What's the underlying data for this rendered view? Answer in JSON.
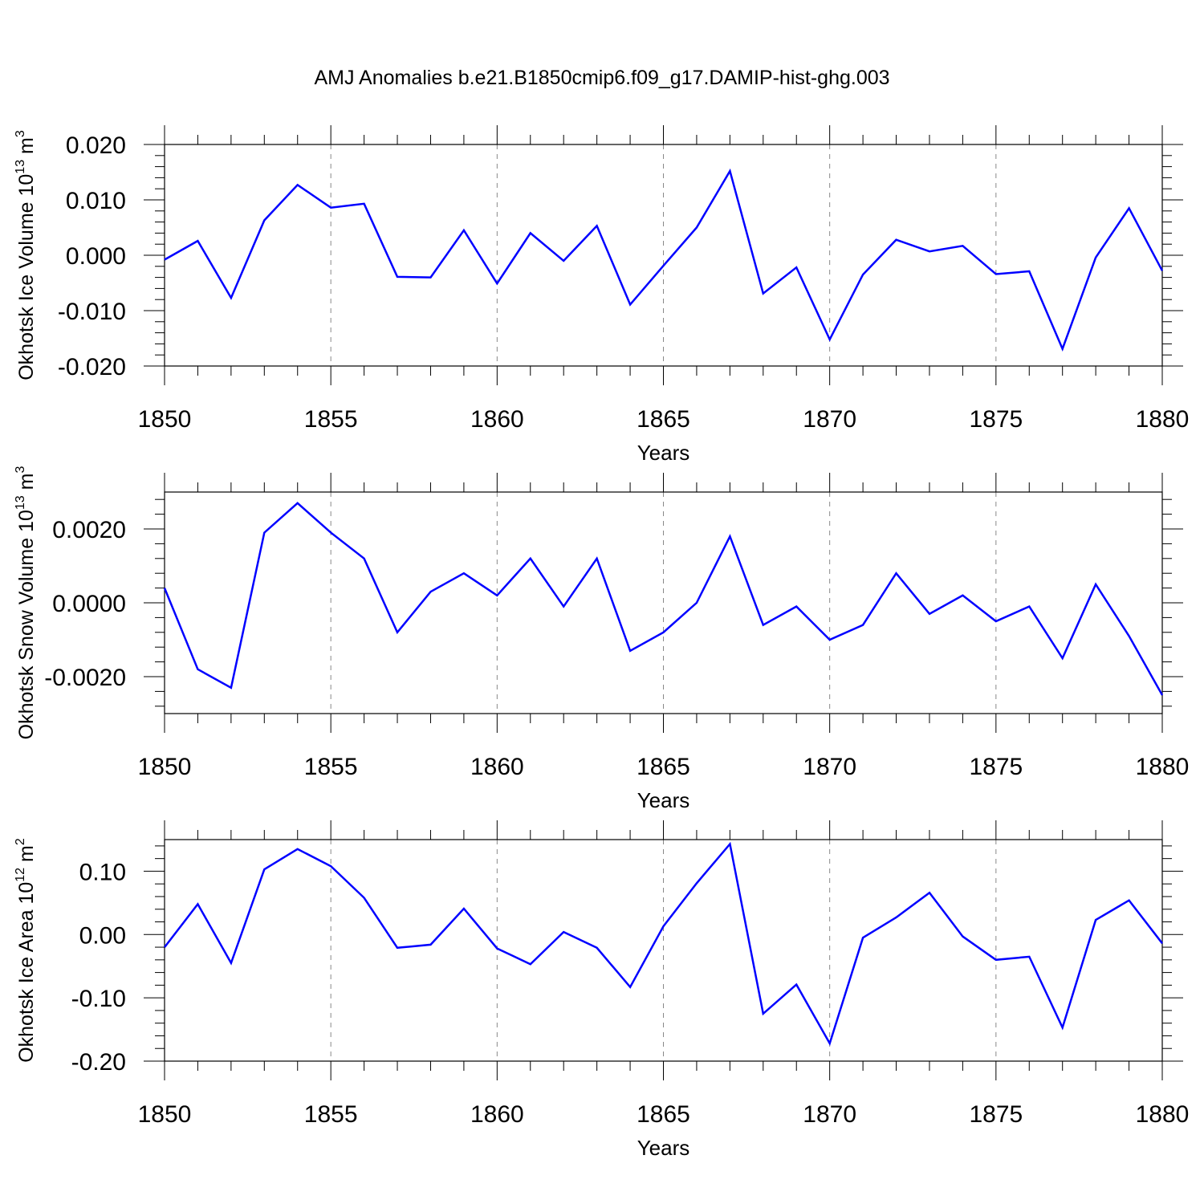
{
  "title": "AMJ Anomalies b.e21.B1850cmip6.f09_g17.DAMIP-hist-ghg.003",
  "colors": {
    "line": "#0000ff",
    "axis": "#000000",
    "grid": "#888888",
    "background": "#ffffff"
  },
  "chart_data": [
    {
      "type": "line",
      "xlabel": "Years",
      "ylabel": {
        "text": "Okhotsk Ice Volume 10",
        "sup": "13",
        "unit": " m",
        "unit_sup": "3"
      },
      "xlim": [
        1850,
        1880
      ],
      "ylim": [
        -0.02,
        0.02
      ],
      "x_ticks": [
        1850,
        1855,
        1860,
        1865,
        1870,
        1875,
        1880
      ],
      "x_tick_labels": [
        "1850",
        "1855",
        "1860",
        "1865",
        "1870",
        "1875",
        "1880"
      ],
      "y_ticks": [
        -0.02,
        -0.01,
        0,
        0.01,
        0.02
      ],
      "y_tick_labels": [
        "-0.020",
        "-0.010",
        "0.000",
        "0.010",
        "0.020"
      ],
      "grid": "vertical dashed at major x ticks",
      "x": [
        1850,
        1851,
        1852,
        1853,
        1854,
        1855,
        1856,
        1857,
        1858,
        1859,
        1860,
        1861,
        1862,
        1863,
        1864,
        1865,
        1866,
        1867,
        1868,
        1869,
        1870,
        1871,
        1872,
        1873,
        1874,
        1875,
        1876,
        1877,
        1878,
        1879,
        1880
      ],
      "values": [
        -0.0008,
        0.0026,
        -0.0077,
        0.0063,
        0.0127,
        0.0086,
        0.0093,
        -0.0039,
        -0.004,
        0.0045,
        -0.0051,
        0.004,
        -0.001,
        0.0053,
        -0.0089,
        -0.0019,
        0.005,
        0.0152,
        -0.0069,
        -0.0022,
        -0.0152,
        -0.0035,
        0.0028,
        0.0007,
        0.0017,
        -0.0034,
        -0.0029,
        -0.0169,
        -0.0004,
        0.0085,
        -0.0028
      ]
    },
    {
      "type": "line",
      "xlabel": "Years",
      "ylabel": {
        "text": "Okhotsk Snow Volume 10",
        "sup": "13",
        "unit": " m",
        "unit_sup": "3"
      },
      "xlim": [
        1850,
        1880
      ],
      "ylim": [
        -0.003,
        0.003
      ],
      "x_ticks": [
        1850,
        1855,
        1860,
        1865,
        1870,
        1875,
        1880
      ],
      "x_tick_labels": [
        "1850",
        "1855",
        "1860",
        "1865",
        "1870",
        "1875",
        "1880"
      ],
      "y_ticks": [
        -0.002,
        0,
        0.002
      ],
      "y_tick_labels": [
        "-0.0020",
        "0.0000",
        "0.0020"
      ],
      "grid": "vertical dashed at major x ticks",
      "x": [
        1850,
        1851,
        1852,
        1853,
        1854,
        1855,
        1856,
        1857,
        1858,
        1859,
        1860,
        1861,
        1862,
        1863,
        1864,
        1865,
        1866,
        1867,
        1868,
        1869,
        1870,
        1871,
        1872,
        1873,
        1874,
        1875,
        1876,
        1877,
        1878,
        1879,
        1880
      ],
      "values": [
        0.0004,
        -0.0018,
        -0.0023,
        0.0019,
        0.0027,
        0.0019,
        0.0012,
        -0.0008,
        0.0003,
        0.0008,
        0.0002,
        0.0012,
        -0.0001,
        0.0012,
        -0.0013,
        -0.0008,
        0.0,
        0.0018,
        -0.0006,
        -0.0001,
        -0.001,
        -0.0006,
        0.0008,
        -0.0003,
        0.0002,
        -0.0005,
        -0.0001,
        -0.0015,
        0.0005,
        -0.0009,
        -0.0025
      ]
    },
    {
      "type": "line",
      "xlabel": "Years",
      "ylabel": {
        "text": "Okhotsk Ice Area 10",
        "sup": "12",
        "unit": " m",
        "unit_sup": "2"
      },
      "xlim": [
        1850,
        1880
      ],
      "ylim": [
        -0.2,
        0.15
      ],
      "x_ticks": [
        1850,
        1855,
        1860,
        1865,
        1870,
        1875,
        1880
      ],
      "x_tick_labels": [
        "1850",
        "1855",
        "1860",
        "1865",
        "1870",
        "1875",
        "1880"
      ],
      "y_ticks": [
        -0.2,
        -0.1,
        0,
        0.1
      ],
      "y_tick_labels": [
        "-0.20",
        "-0.10",
        "0.00",
        "0.10"
      ],
      "grid": "vertical dashed at major x ticks",
      "x": [
        1850,
        1851,
        1852,
        1853,
        1854,
        1855,
        1856,
        1857,
        1858,
        1859,
        1860,
        1861,
        1862,
        1863,
        1864,
        1865,
        1866,
        1867,
        1868,
        1869,
        1870,
        1871,
        1872,
        1873,
        1874,
        1875,
        1876,
        1877,
        1878,
        1879,
        1880
      ],
      "values": [
        -0.02,
        0.048,
        -0.045,
        0.103,
        0.135,
        0.108,
        0.058,
        -0.021,
        -0.016,
        0.041,
        -0.022,
        -0.047,
        0.004,
        -0.021,
        -0.083,
        0.013,
        0.081,
        0.143,
        -0.125,
        -0.079,
        -0.172,
        -0.005,
        0.027,
        0.066,
        -0.003,
        -0.04,
        -0.035,
        -0.147,
        0.023,
        0.054,
        -0.014
      ]
    }
  ]
}
